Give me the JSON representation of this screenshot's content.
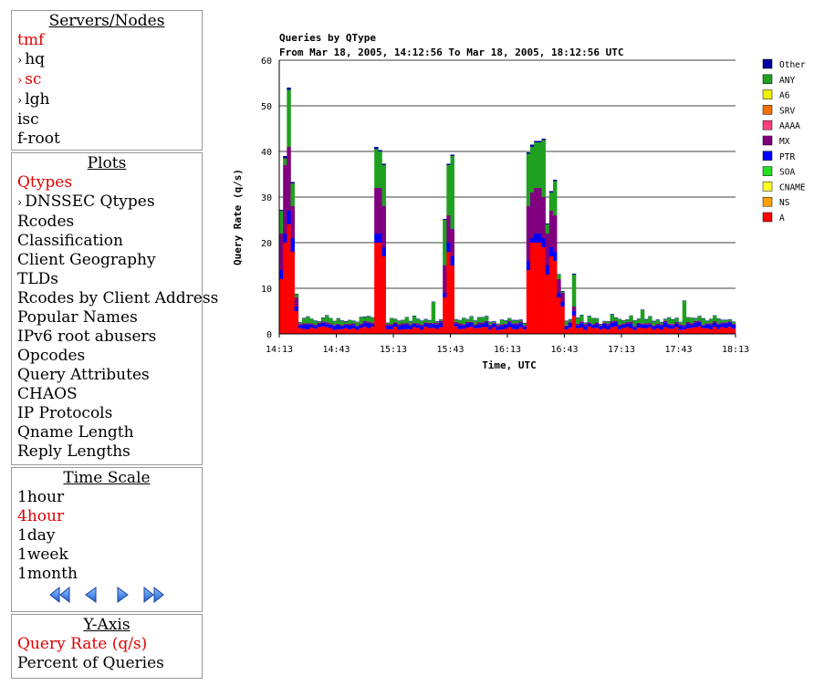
{
  "servers": {
    "title_a": "Servers",
    "title_sep": "/",
    "title_b": "Nodes",
    "items": [
      {
        "label": "tmf",
        "active": true,
        "arrow": false
      },
      {
        "label": "hq",
        "active": false,
        "arrow": true
      },
      {
        "label": "sc",
        "active": true,
        "arrow": true
      },
      {
        "label": "lgh",
        "active": false,
        "arrow": true
      },
      {
        "label": "isc",
        "active": false,
        "arrow": false
      },
      {
        "label": "f-root",
        "active": false,
        "arrow": false
      }
    ]
  },
  "plots": {
    "title": "Plots",
    "items": [
      {
        "label": "Qtypes",
        "active": true,
        "arrow": false
      },
      {
        "label": "DNSSEC Qtypes",
        "active": false,
        "arrow": true
      },
      {
        "label": "Rcodes",
        "active": false,
        "arrow": false
      },
      {
        "label": "Classification",
        "active": false,
        "arrow": false
      },
      {
        "label": "Client Geography",
        "active": false,
        "arrow": false
      },
      {
        "label": "TLDs",
        "active": false,
        "arrow": false
      },
      {
        "label": "Rcodes by Client Address",
        "active": false,
        "arrow": false
      },
      {
        "label": "Popular Names",
        "active": false,
        "arrow": false
      },
      {
        "label": "IPv6 root abusers",
        "active": false,
        "arrow": false
      },
      {
        "label": "Opcodes",
        "active": false,
        "arrow": false
      },
      {
        "label": "Query Attributes",
        "active": false,
        "arrow": false
      },
      {
        "label": "CHAOS",
        "active": false,
        "arrow": false
      },
      {
        "label": "IP Protocols",
        "active": false,
        "arrow": false
      },
      {
        "label": "Qname Length",
        "active": false,
        "arrow": false
      },
      {
        "label": "Reply Lengths",
        "active": false,
        "arrow": false
      }
    ]
  },
  "timescale": {
    "title": "Time Scale",
    "items": [
      {
        "label": "1hour",
        "active": false
      },
      {
        "label": "4hour",
        "active": true
      },
      {
        "label": "1day",
        "active": false
      },
      {
        "label": "1week",
        "active": false
      },
      {
        "label": "1month",
        "active": false
      }
    ],
    "nav_icons": [
      "rewind-icon",
      "back-icon",
      "forward-icon",
      "fast-forward-icon"
    ]
  },
  "yaxis": {
    "title": "Y-Axis",
    "items": [
      {
        "label": "Query Rate (q/s)",
        "active": true
      },
      {
        "label": "Percent of Queries",
        "active": false
      }
    ]
  },
  "colors": {
    "active_link": "#e00000",
    "series": {
      "Other": "#0000a0",
      "ANY": "#20a020",
      "A6": "#f0f000",
      "SRV": "#f07000",
      "AAAA": "#ff4080",
      "MX": "#800080",
      "PTR": "#0000ff",
      "SOA": "#20e020",
      "CNAME": "#ffff20",
      "NS": "#ffa000",
      "A": "#ff0000"
    }
  },
  "chart_data": {
    "type": "bar",
    "stacked": true,
    "title": "Queries by QType",
    "subtitle": "From Mar 18, 2005, 14:12:56 To Mar 18, 2005, 18:12:56 UTC",
    "xlabel": "Time, UTC",
    "ylabel": "Query Rate (q/s)",
    "ylim": [
      0,
      60
    ],
    "yticks": [
      0,
      10,
      20,
      30,
      40,
      50,
      60
    ],
    "xticks": [
      "14:13",
      "14:43",
      "15:13",
      "15:43",
      "16:13",
      "16:43",
      "17:13",
      "17:43",
      "18:13"
    ],
    "xlim_minutes": [
      0,
      240
    ],
    "grid": true,
    "legend": "right",
    "legend_order": [
      "Other",
      "ANY",
      "A6",
      "SRV",
      "AAAA",
      "MX",
      "PTR",
      "SOA",
      "CNAME",
      "NS",
      "A"
    ],
    "stack_order": [
      "A",
      "PTR",
      "MX",
      "ANY",
      "Other"
    ],
    "bar_minutes": 2,
    "baseline": {
      "A": 1.2,
      "PTR": 0.8,
      "MX": 0.3,
      "ANY": 0.6,
      "Other": 0.1
    },
    "x_minutes": [
      0,
      2,
      4,
      6,
      8,
      50,
      52,
      54,
      86,
      88,
      90,
      130,
      132,
      134,
      136,
      138,
      140,
      142,
      144,
      146,
      148,
      154
    ],
    "series": [
      {
        "name": "A",
        "values": [
          12,
          20,
          24,
          18,
          5,
          20,
          20,
          17,
          8,
          18,
          15,
          14,
          20,
          20,
          20,
          19,
          13,
          17,
          16,
          8,
          6,
          4
        ]
      },
      {
        "name": "PTR",
        "values": [
          2,
          2,
          3,
          3,
          1,
          2,
          2,
          2,
          1,
          2,
          2,
          2,
          1,
          2,
          2,
          2,
          2,
          2,
          2,
          1,
          1,
          1
        ]
      },
      {
        "name": "MX",
        "values": [
          8,
          15,
          14,
          7,
          2,
          10,
          10,
          9,
          6,
          6,
          6,
          12,
          10,
          10,
          10,
          9,
          7,
          8,
          8,
          3,
          2,
          1
        ]
      },
      {
        "name": "ANY",
        "values": [
          5,
          1.5,
          12.5,
          5,
          0.7,
          8.5,
          8,
          9,
          10,
          11,
          16,
          11.5,
          10,
          10,
          10,
          12.5,
          2,
          4,
          7.5,
          1,
          0.3,
          7
        ]
      },
      {
        "name": "Other",
        "values": [
          0.2,
          0.5,
          0.5,
          0.3,
          0.1,
          0.5,
          0.3,
          0.3,
          0.2,
          0.3,
          0.3,
          0.3,
          0.5,
          0.3,
          0.3,
          0.3,
          0.2,
          0.3,
          0.3,
          0.1,
          0.1,
          0.2
        ]
      }
    ]
  }
}
